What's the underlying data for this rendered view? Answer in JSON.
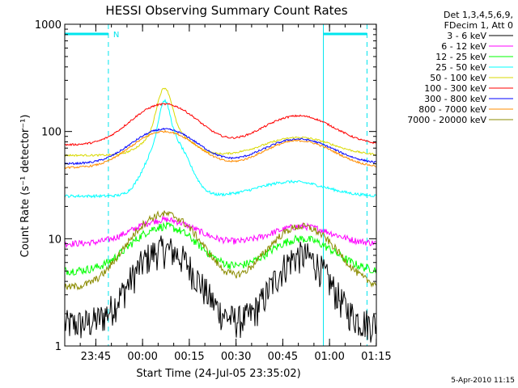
{
  "chart_data": {
    "type": "line",
    "title": "HESSI Observing Summary Count Rates",
    "xlabel": "Start Time (24-Jul-05 23:35:02)",
    "ylabel": "Count Rate (s⁻¹ detector⁻¹)",
    "x_unit": "minutes after 23:35:02",
    "xlim": [
      0,
      100
    ],
    "ylim": [
      1,
      1000
    ],
    "y_scale": "log",
    "x_ticks": [
      {
        "t": 9.97,
        "label": "23:45"
      },
      {
        "t": 24.97,
        "label": "00:00"
      },
      {
        "t": 39.97,
        "label": "00:15"
      },
      {
        "t": 54.97,
        "label": "00:30"
      },
      {
        "t": 69.97,
        "label": "00:45"
      },
      {
        "t": 84.97,
        "label": "01:00"
      },
      {
        "t": 99.97,
        "label": "01:15"
      }
    ],
    "y_ticks": [
      {
        "v": 1,
        "label": "1"
      },
      {
        "v": 10,
        "label": "10"
      },
      {
        "v": 100,
        "label": "100"
      },
      {
        "v": 1000,
        "label": "1000"
      }
    ],
    "legend_header": [
      "Det 1,3,4,5,6,9,",
      "FDecim 1, Att 0"
    ],
    "legend_position": "right",
    "night_markers": {
      "color": "#00e5ee",
      "solid": [
        0,
        83
      ],
      "dashed": [
        14,
        97
      ],
      "label": "N"
    },
    "series": [
      {
        "name": "3 - 6 keV",
        "color": "#000000",
        "baseline": 1.6,
        "peaks": [
          [
            32,
            8,
            8
          ],
          [
            76,
            7,
            7
          ]
        ],
        "noise": 0.35
      },
      {
        "name": "6 - 12 keV",
        "color": "#ff00ff",
        "baseline": 9,
        "peaks": [
          [
            32,
            15,
            9
          ],
          [
            76,
            13,
            9
          ]
        ],
        "noise": 0.07
      },
      {
        "name": "12 - 25 keV",
        "color": "#00ff00",
        "baseline": 5,
        "peaks": [
          [
            32,
            13,
            9
          ],
          [
            76,
            10,
            9
          ]
        ],
        "noise": 0.09
      },
      {
        "name": "25 - 50 keV",
        "color": "#00ffff",
        "baseline": 25,
        "peaks": [
          [
            32,
            125,
            1.5
          ],
          [
            33,
            95,
            5
          ],
          [
            73,
            34,
            10
          ]
        ],
        "noise": 0.03
      },
      {
        "name": "50 - 100 keV",
        "color": "#d9d900",
        "baseline": 60,
        "peaks": [
          [
            32,
            210,
            2
          ],
          [
            33,
            105,
            6
          ],
          [
            75,
            88,
            10
          ]
        ],
        "noise": 0.02
      },
      {
        "name": "100 - 300 keV",
        "color": "#ff0000",
        "baseline": 75,
        "peaks": [
          [
            32,
            180,
            9
          ],
          [
            75,
            140,
            10
          ]
        ],
        "noise": 0.02
      },
      {
        "name": "300 - 800 keV",
        "color": "#0000ff",
        "baseline": 50,
        "peaks": [
          [
            32,
            105,
            9
          ],
          [
            75,
            85,
            10
          ]
        ],
        "noise": 0.02
      },
      {
        "name": "800 - 7000 keV",
        "color": "#ff8c00",
        "baseline": 46,
        "peaks": [
          [
            32,
            100,
            9
          ],
          [
            75,
            82,
            10
          ]
        ],
        "noise": 0.02
      },
      {
        "name": "7000 - 20000 keV",
        "color": "#8b8b00",
        "baseline": 3.5,
        "peaks": [
          [
            32,
            17,
            9
          ],
          [
            76,
            13,
            9
          ]
        ],
        "noise": 0.08
      }
    ]
  },
  "footer_date": "5-Apr-2010 11:15"
}
